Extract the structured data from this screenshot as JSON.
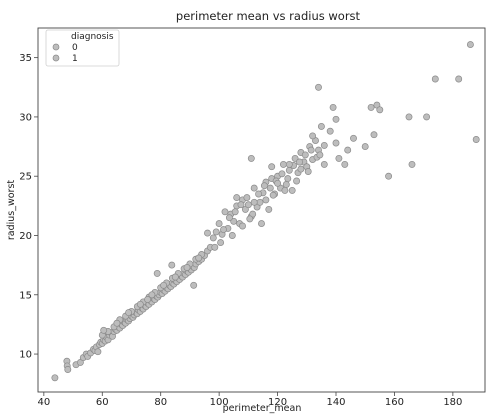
{
  "chart_data": {
    "type": "scatter",
    "title": "perimeter mean vs radius worst",
    "xlabel": "perimeter_mean",
    "ylabel": "radius_worst",
    "xlim": [
      38,
      191
    ],
    "ylim": [
      6.8,
      37.5
    ],
    "xticks": [
      40,
      60,
      80,
      100,
      120,
      140,
      160,
      180
    ],
    "yticks": [
      10,
      15,
      20,
      25,
      30,
      35
    ],
    "grid": false,
    "legend": {
      "title": "diagnosis",
      "placement": "top-left",
      "entries": [
        "0",
        "1"
      ]
    },
    "point_color": "#bdbdbd",
    "point_edge_color": "#8a8a8a",
    "series": [
      {
        "name": "0",
        "x": [
          43.8,
          47.9,
          48.0,
          48.2,
          51.0,
          52.5,
          53.5,
          54.5,
          55.0,
          56.0,
          57.0,
          57.5,
          58.0,
          58.5,
          59.0,
          59.5,
          60.0,
          60.5,
          61.0,
          61.5,
          62.0,
          62.5,
          63.0,
          63.5,
          64.0,
          64.5,
          65.0,
          65.5,
          66.0,
          66.5,
          67.0,
          67.5,
          68.0,
          68.5,
          69.0,
          69.5,
          70.0,
          70.5,
          71.0,
          71.5,
          72.0,
          72.5,
          73.0,
          73.5,
          74.0,
          74.5,
          75.0,
          75.5,
          76.0,
          76.5,
          77.0,
          77.5,
          78.0,
          78.5,
          79.0,
          79.5,
          80.0,
          80.5,
          81.0,
          81.5,
          82.0,
          82.5,
          83.0,
          83.5,
          84.0,
          84.5,
          85.0,
          85.5,
          86.0,
          86.5,
          87.0,
          87.5,
          88.0,
          88.5,
          89.0,
          89.5,
          90.0,
          90.5,
          91.0,
          91.5,
          92.0,
          93.0,
          94.0,
          95.0,
          60.0,
          62.0,
          64.0,
          66.0,
          68.0,
          70.0,
          72.0,
          74.0,
          76.0,
          78.0,
          80.0,
          82.0,
          84.0,
          86.0,
          88.0,
          90.0,
          92.0,
          94.0,
          96.0,
          65.0,
          69.0,
          73.0,
          77.0,
          81.0,
          85.0,
          89.0,
          93.0,
          97.0,
          60.5,
          75.5,
          78.8,
          83.8,
          91.3
        ],
        "y": [
          8.0,
          9.4,
          9.0,
          8.7,
          9.1,
          9.3,
          9.7,
          10.0,
          9.8,
          10.1,
          10.4,
          10.3,
          10.6,
          10.2,
          10.8,
          11.0,
          10.9,
          11.2,
          11.1,
          11.4,
          11.2,
          11.6,
          11.8,
          11.5,
          11.9,
          12.1,
          12.0,
          12.3,
          12.2,
          12.5,
          12.4,
          12.7,
          12.6,
          12.9,
          12.8,
          13.0,
          13.2,
          13.1,
          13.3,
          13.5,
          13.4,
          13.7,
          13.6,
          13.9,
          13.8,
          14.1,
          14.0,
          14.3,
          14.2,
          14.5,
          14.4,
          14.7,
          14.6,
          14.9,
          14.8,
          15.0,
          15.2,
          15.1,
          15.4,
          15.3,
          15.6,
          15.5,
          15.8,
          15.7,
          16.0,
          15.9,
          16.2,
          16.1,
          16.4,
          16.3,
          16.6,
          16.5,
          16.8,
          16.7,
          17.0,
          16.9,
          17.2,
          17.1,
          17.4,
          17.3,
          17.6,
          17.8,
          18.0,
          18.3,
          11.6,
          11.9,
          12.3,
          12.9,
          13.2,
          13.6,
          14.0,
          14.4,
          14.8,
          15.2,
          15.6,
          16.0,
          16.4,
          16.8,
          17.2,
          17.6,
          18.0,
          18.4,
          18.7,
          12.6,
          13.5,
          14.2,
          15.0,
          15.8,
          16.5,
          17.3,
          18.1,
          19.0,
          12.0,
          14.6,
          16.8,
          17.5,
          15.8
        ]
      },
      {
        "name": "1",
        "x": [
          98.0,
          99.0,
          100.0,
          101.0,
          102.0,
          103.0,
          104.0,
          105.0,
          106.0,
          107.0,
          108.0,
          109.0,
          110.0,
          111.0,
          112.0,
          113.0,
          114.0,
          115.0,
          116.0,
          117.0,
          118.0,
          119.0,
          120.0,
          121.0,
          122.0,
          123.0,
          124.0,
          125.0,
          126.0,
          127.0,
          128.0,
          129.0,
          130.0,
          131.0,
          132.0,
          133.0,
          134.0,
          135.0,
          136.0,
          138.0,
          139.0,
          140.0,
          141.0,
          143.0,
          144.0,
          146.0,
          150.0,
          152.0,
          153.0,
          154.0,
          155.0,
          158.0,
          165.0,
          166.0,
          171.0,
          174.0,
          182.0,
          186.0,
          188.0,
          101.5,
          103.5,
          105.5,
          107.5,
          109.5,
          111.5,
          113.5,
          115.5,
          117.5,
          119.5,
          121.5,
          123.5,
          125.5,
          127.5,
          129.5,
          131.5,
          133.5,
          108.0,
          112.0,
          116.0,
          120.0,
          124.0,
          128.0,
          132.0,
          136.0,
          140.0,
          100.5,
          104.5,
          110.5,
          114.5,
          118.5,
          122.5,
          126.5,
          130.5,
          134.5,
          134.0,
          111.0,
          118.0,
          106.0,
          96.0,
          98.5
        ],
        "y": [
          19.8,
          20.3,
          21.0,
          20.1,
          22.0,
          20.6,
          21.8,
          21.2,
          22.5,
          21.0,
          23.0,
          22.2,
          22.6,
          21.6,
          24.0,
          22.4,
          22.8,
          23.6,
          24.5,
          22.2,
          24.8,
          23.5,
          25.0,
          24.0,
          26.0,
          24.3,
          25.5,
          23.8,
          26.5,
          25.3,
          27.0,
          26.2,
          25.8,
          27.5,
          26.4,
          28.0,
          27.2,
          29.2,
          26.0,
          28.8,
          30.8,
          27.8,
          26.5,
          26.0,
          27.2,
          28.2,
          27.5,
          30.8,
          28.5,
          31.0,
          30.6,
          25.0,
          30.0,
          26.0,
          30.0,
          33.2,
          33.2,
          36.1,
          28.1,
          20.5,
          21.5,
          22.0,
          22.6,
          23.2,
          21.8,
          23.5,
          24.2,
          24.0,
          24.6,
          25.2,
          24.8,
          25.9,
          26.2,
          26.8,
          27.2,
          26.6,
          20.8,
          22.8,
          23.0,
          24.4,
          26.0,
          25.6,
          28.4,
          27.6,
          29.8,
          19.4,
          20.0,
          21.4,
          21.0,
          23.4,
          23.8,
          24.6,
          25.4,
          26.8,
          32.5,
          26.5,
          25.8,
          23.2,
          20.2,
          19.0
        ]
      }
    ]
  }
}
